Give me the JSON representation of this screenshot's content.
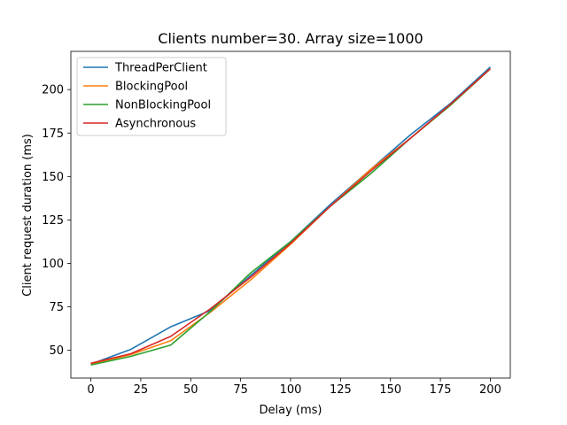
{
  "chart_data": {
    "type": "line",
    "title": "Clients number=30. Array size=1000",
    "xlabel": "Delay (ms)",
    "ylabel": "Client request duration (ms)",
    "xlim": [
      -10,
      210
    ],
    "ylim": [
      34,
      222
    ],
    "xticks": [
      0,
      25,
      50,
      75,
      100,
      125,
      150,
      175,
      200
    ],
    "yticks": [
      50,
      75,
      100,
      125,
      150,
      175,
      200
    ],
    "legend_position": "top-left",
    "grid": false,
    "x": [
      0,
      20,
      40,
      60,
      80,
      100,
      120,
      140,
      160,
      180,
      200
    ],
    "series": [
      {
        "name": "ThreadPerClient",
        "color": "#1f77b4",
        "values": [
          42,
          50.5,
          63.5,
          73,
          93,
          112.5,
          134,
          154,
          174,
          192,
          213
        ]
      },
      {
        "name": "BlockingPool",
        "color": "#ff7f0e",
        "values": [
          42,
          47.5,
          55.5,
          72,
          90.5,
          111,
          133,
          154,
          172,
          191,
          212
        ]
      },
      {
        "name": "NonBlockingPool",
        "color": "#2ca02c",
        "values": [
          41.5,
          46.5,
          53,
          72.5,
          94.5,
          112.5,
          133,
          151.5,
          172,
          191,
          212
        ]
      },
      {
        "name": "Asynchronous",
        "color": "#d62728",
        "values": [
          42.5,
          48,
          58,
          74,
          92,
          111.5,
          133,
          153,
          172,
          191.5,
          212
        ]
      }
    ]
  }
}
